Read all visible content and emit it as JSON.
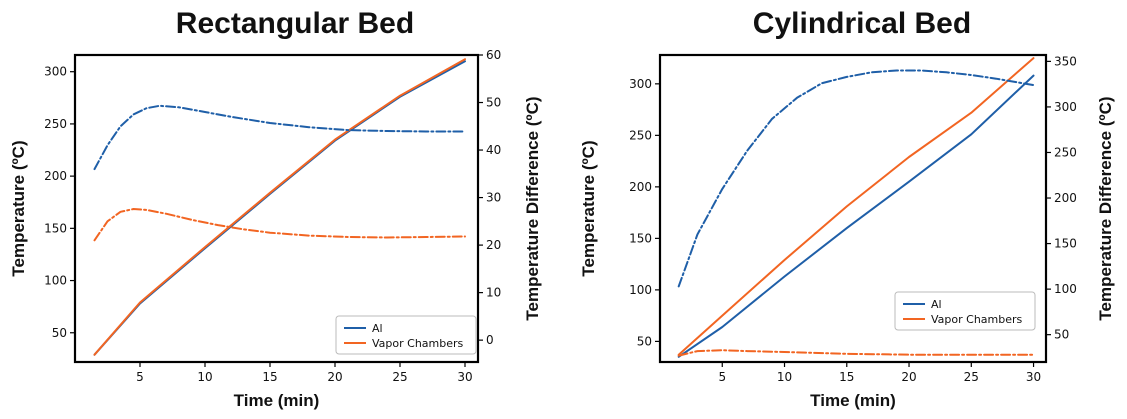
{
  "chart_data": [
    {
      "type": "line",
      "title": "Rectangular Bed",
      "xlabel": "Time (min)",
      "ylabel": "Temperature (ºC)",
      "y2label": "Temperature Difference (ºC)",
      "xlim": [
        0,
        31
      ],
      "ylim": [
        22,
        316
      ],
      "y2lim": [
        -4.6,
        60
      ],
      "xticks": [
        5,
        10,
        15,
        20,
        25,
        30
      ],
      "yticks": [
        50,
        100,
        150,
        200,
        250,
        300
      ],
      "y2ticks": [
        0,
        10,
        20,
        30,
        40,
        50,
        60
      ],
      "legend_position": "lower-right",
      "series": [
        {
          "name": "Al",
          "color": "#1f5fa8",
          "style": "solid",
          "axis": "left",
          "x": [
            1.5,
            5,
            10,
            15,
            20,
            25,
            30
          ],
          "y": [
            29,
            78,
            131,
            183,
            234,
            276,
            310
          ]
        },
        {
          "name": "Vapor Chambers",
          "color": "#f26522",
          "style": "solid",
          "axis": "left",
          "x": [
            1.5,
            5,
            10,
            15,
            20,
            25,
            30
          ],
          "y": [
            29,
            79,
            132,
            184,
            235,
            277,
            312
          ]
        },
        {
          "name": "Al",
          "color": "#1f5fa8",
          "style": "dashdot",
          "axis": "right",
          "x": [
            1.5,
            2.5,
            3.5,
            4.5,
            5.5,
            6.5,
            8,
            10,
            12,
            15,
            18,
            21,
            24,
            27,
            30
          ],
          "y": [
            36,
            41,
            45,
            47.5,
            48.8,
            49.3,
            49,
            48,
            47,
            45.7,
            44.8,
            44.2,
            44,
            43.9,
            43.9
          ]
        },
        {
          "name": "Vapor Chambers",
          "color": "#f26522",
          "style": "dashdot",
          "axis": "right",
          "x": [
            1.5,
            2.5,
            3.5,
            4.5,
            5.5,
            7,
            9,
            11,
            13,
            15,
            18,
            21,
            24,
            27,
            30
          ],
          "y": [
            21,
            25,
            27,
            27.6,
            27.4,
            26.6,
            25.3,
            24.2,
            23.3,
            22.6,
            22,
            21.7,
            21.6,
            21.7,
            21.8
          ]
        }
      ],
      "legend": [
        "Al",
        "Vapor Chambers"
      ]
    },
    {
      "type": "line",
      "title": "Cylindrical Bed",
      "xlabel": "Time (min)",
      "ylabel": "Temperature (ºC)",
      "y2label": "Temperature Difference (ºC)",
      "xlim": [
        0,
        31
      ],
      "ylim": [
        30,
        328
      ],
      "y2lim": [
        20,
        357
      ],
      "xticks": [
        5,
        10,
        15,
        20,
        25,
        30
      ],
      "yticks": [
        50,
        100,
        150,
        200,
        250,
        300
      ],
      "y2ticks": [
        50,
        100,
        150,
        200,
        250,
        300,
        350
      ],
      "legend_position": "lower-right",
      "series": [
        {
          "name": "Al",
          "color": "#1f5fa8",
          "style": "solid",
          "axis": "left",
          "x": [
            1.5,
            5,
            10,
            15,
            20,
            25,
            30
          ],
          "y": [
            35,
            64,
            113,
            160,
            205,
            251,
            308
          ]
        },
        {
          "name": "Vapor Chambers",
          "color": "#f26522",
          "style": "solid",
          "axis": "left",
          "x": [
            1.5,
            5,
            10,
            15,
            20,
            25,
            30
          ],
          "y": [
            37,
            75,
            129,
            181,
            229,
            272,
            325
          ]
        },
        {
          "name": "Al",
          "color": "#1f5fa8",
          "style": "dashdot",
          "axis": "right",
          "x": [
            1.5,
            3,
            5,
            7,
            9,
            11,
            13,
            15,
            17,
            19,
            21,
            23,
            25,
            27,
            30
          ],
          "y": [
            103,
            160,
            210,
            252,
            287,
            310,
            326,
            333,
            338,
            340,
            340,
            338,
            335,
            331,
            324
          ]
        },
        {
          "name": "Vapor Chambers",
          "color": "#f26522",
          "style": "dashdot",
          "axis": "right",
          "x": [
            1.5,
            3,
            5,
            7,
            10,
            15,
            20,
            25,
            30
          ],
          "y": [
            27,
            32,
            33,
            32,
            31,
            29,
            28,
            28,
            28
          ]
        }
      ],
      "legend": [
        "Al",
        "Vapor Chambers"
      ]
    }
  ]
}
